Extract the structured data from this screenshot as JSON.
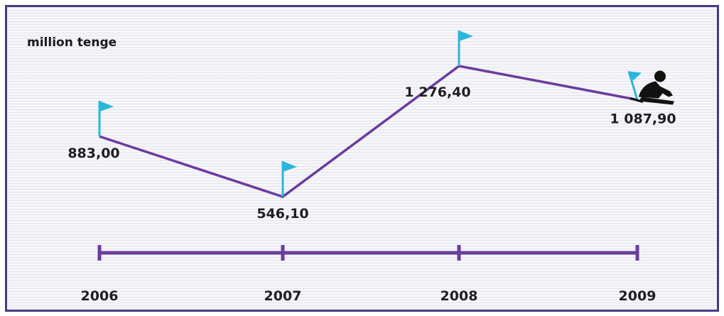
{
  "chart_data": {
    "type": "line",
    "title": "",
    "ylabel": "million tenge",
    "xlabel": "",
    "categories": [
      "2006",
      "2007",
      "2008",
      "2009"
    ],
    "series": [
      {
        "values": [
          883.0,
          546.1,
          1276.4,
          1087.9
        ]
      }
    ],
    "value_labels": [
      "883,00",
      "546,10",
      "1 276,40",
      "1 087,90"
    ],
    "ylim": [
      546.1,
      1276.4
    ],
    "grid": false,
    "legend": "none",
    "colors": {
      "line": "#6a3d9a",
      "axis": "#6a3d9a",
      "flag": "#2bb6dc",
      "frame": "#4a3a80"
    },
    "markers": [
      "flag-icon",
      "flag-icon",
      "flag-icon",
      "fallen-climber-icon"
    ]
  }
}
